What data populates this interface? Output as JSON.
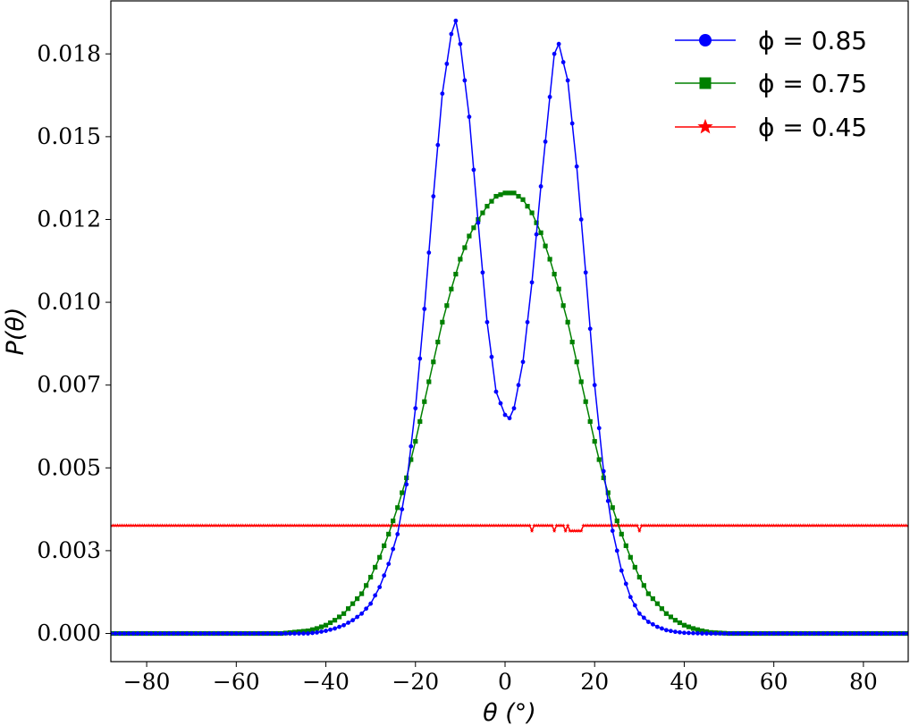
{
  "chart_data": {
    "type": "line",
    "xlabel": "θ (°)",
    "ylabel": "P(θ)",
    "xlim": [
      -88,
      90
    ],
    "ylim": [
      -0.00085,
      0.0191
    ],
    "x_ticks": [
      -80,
      -60,
      -40,
      -20,
      0,
      20,
      40,
      60,
      80
    ],
    "x_tick_labels": [
      "−80",
      "−60",
      "−40",
      "−20",
      "0",
      "20",
      "40",
      "60",
      "80"
    ],
    "y_ticks": [
      0.0,
      0.0025,
      0.005,
      0.0075,
      0.01,
      0.0125,
      0.015,
      0.0175
    ],
    "y_tick_labels": [
      "0.000",
      "0.003",
      "0.005",
      "0.007",
      "0.010",
      "0.012",
      "0.015",
      "0.018"
    ],
    "grid": false,
    "legend_position": "top-right",
    "series": [
      {
        "name": "ϕ = 0.85",
        "color": "#0000ff",
        "marker": "circle",
        "x": [
          -88,
          -50,
          -44,
          -42,
          -40,
          -38,
          -36,
          -34,
          -32,
          -30,
          -28,
          -26,
          -24,
          -22,
          -20,
          -18,
          -16,
          -14,
          -12,
          -11,
          -10,
          -8,
          -6,
          -4,
          -2,
          0,
          1,
          2,
          4,
          6,
          8,
          10,
          11,
          12,
          14,
          16,
          18,
          20,
          22,
          24,
          26,
          28,
          30,
          32,
          34,
          36,
          38,
          40,
          42,
          44,
          46,
          50,
          90
        ],
        "y": [
          0,
          0,
          0,
          3e-05,
          8e-05,
          0.00015,
          0.00025,
          0.0004,
          0.0006,
          0.0009,
          0.0014,
          0.0021,
          0.003,
          0.0045,
          0.0068,
          0.0098,
          0.0132,
          0.0163,
          0.0181,
          0.0185,
          0.0178,
          0.0156,
          0.0124,
          0.0094,
          0.0073,
          0.0066,
          0.0065,
          0.0068,
          0.0082,
          0.0106,
          0.0135,
          0.0162,
          0.0175,
          0.0178,
          0.0167,
          0.0141,
          0.0109,
          0.0075,
          0.0049,
          0.0031,
          0.0019,
          0.0011,
          0.0006,
          0.00035,
          0.0002,
          0.0001,
          5e-05,
          2e-05,
          1e-05,
          0,
          0,
          0,
          0
        ]
      },
      {
        "name": "ϕ = 0.75",
        "color": "#008000",
        "marker": "square",
        "x": [
          -88,
          -50,
          -44,
          -42,
          -40,
          -38,
          -36,
          -34,
          -32,
          -30,
          -28,
          -26,
          -24,
          -22,
          -20,
          -18,
          -16,
          -14,
          -12,
          -10,
          -8,
          -6,
          -4,
          -2,
          0,
          1,
          2,
          4,
          6,
          8,
          10,
          12,
          14,
          16,
          18,
          20,
          22,
          24,
          26,
          28,
          30,
          32,
          34,
          36,
          38,
          40,
          42,
          44,
          46,
          50,
          90
        ],
        "y": [
          0,
          0,
          8e-05,
          0.00015,
          0.00025,
          0.0004,
          0.0006,
          0.0009,
          0.0012,
          0.0017,
          0.0023,
          0.003,
          0.0038,
          0.0047,
          0.0058,
          0.007,
          0.0082,
          0.0094,
          0.0104,
          0.0113,
          0.012,
          0.0125,
          0.0129,
          0.0132,
          0.0133,
          0.0133,
          0.0133,
          0.0131,
          0.0127,
          0.0121,
          0.0113,
          0.0104,
          0.0094,
          0.0082,
          0.007,
          0.0058,
          0.0047,
          0.0038,
          0.003,
          0.0023,
          0.0017,
          0.0012,
          0.0009,
          0.0006,
          0.0004,
          0.00025,
          0.00015,
          8e-05,
          3e-05,
          0,
          0
        ]
      },
      {
        "name": "ϕ = 0.45",
        "color": "#ff0000",
        "marker": "star",
        "x": [
          -88,
          5.5,
          6,
          6.5,
          10.5,
          11,
          11.5,
          13,
          13.5,
          14,
          14.5,
          15,
          16,
          17,
          17.5,
          29.5,
          30,
          30.5,
          90
        ],
        "y": [
          0.00326,
          0.00326,
          0.0031,
          0.00326,
          0.00326,
          0.0031,
          0.00326,
          0.00326,
          0.0031,
          0.00326,
          0.0031,
          0.0031,
          0.0031,
          0.0031,
          0.00326,
          0.00326,
          0.0031,
          0.00326,
          0.00326
        ]
      }
    ]
  }
}
